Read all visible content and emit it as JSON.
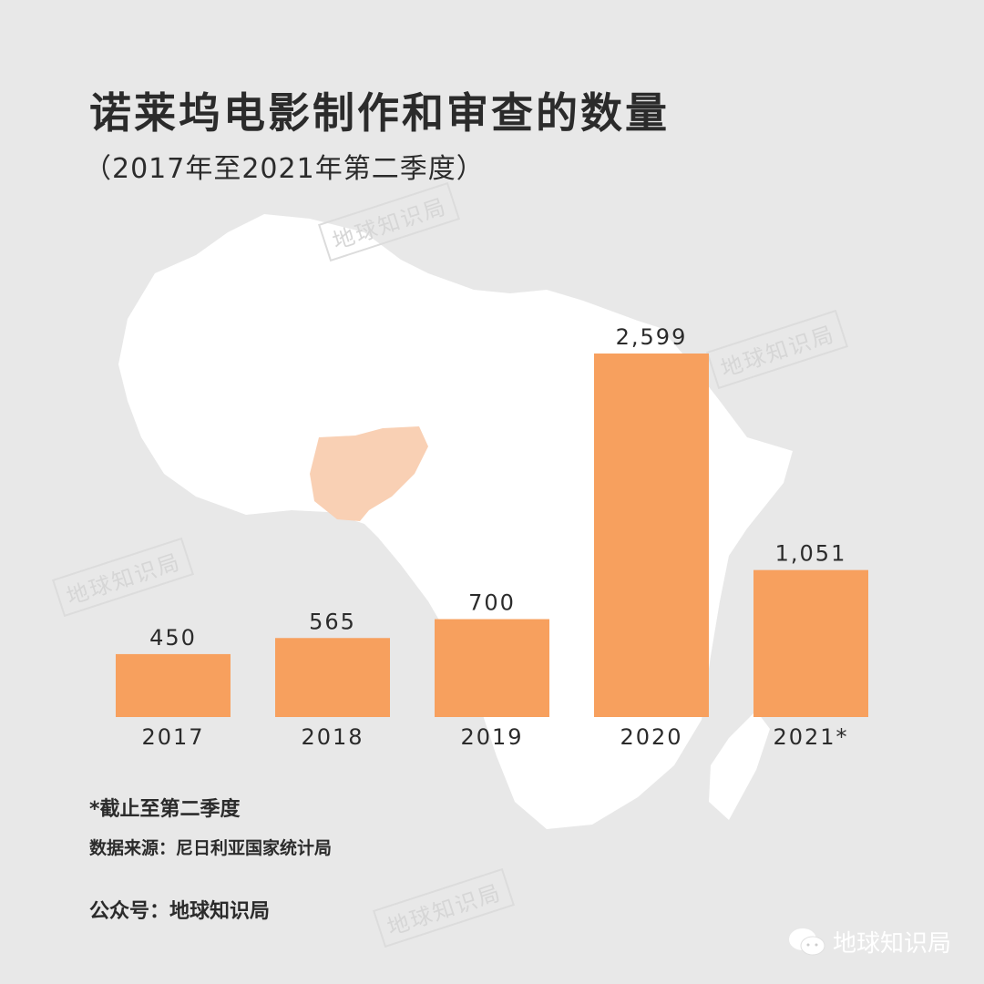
{
  "title": "诺莱坞电影制作和审查的数量",
  "subtitle": "（2017年至2021年第二季度）",
  "watermark": "地球知识局",
  "footnote": "*截止至第二季度",
  "source": "数据来源：尼日利亚国家统计局",
  "account": "公众号：地球知识局",
  "logo_text": "地球知识局",
  "colors": {
    "background": "#e8e8e8",
    "bar": "#f7a05e",
    "map": "#ffffff",
    "nigeria": "#f9d0b4"
  },
  "chart_data": {
    "type": "bar",
    "title": "诺莱坞电影制作和审查的数量",
    "categories": [
      "2017",
      "2018",
      "2019",
      "2020",
      "2021*"
    ],
    "values": [
      450,
      565,
      700,
      2599,
      1051
    ],
    "value_labels": [
      "450",
      "565",
      "700",
      "2,599",
      "1,051"
    ],
    "ylim": [
      0,
      2599
    ],
    "grid": false,
    "xlabel": "",
    "ylabel": ""
  }
}
